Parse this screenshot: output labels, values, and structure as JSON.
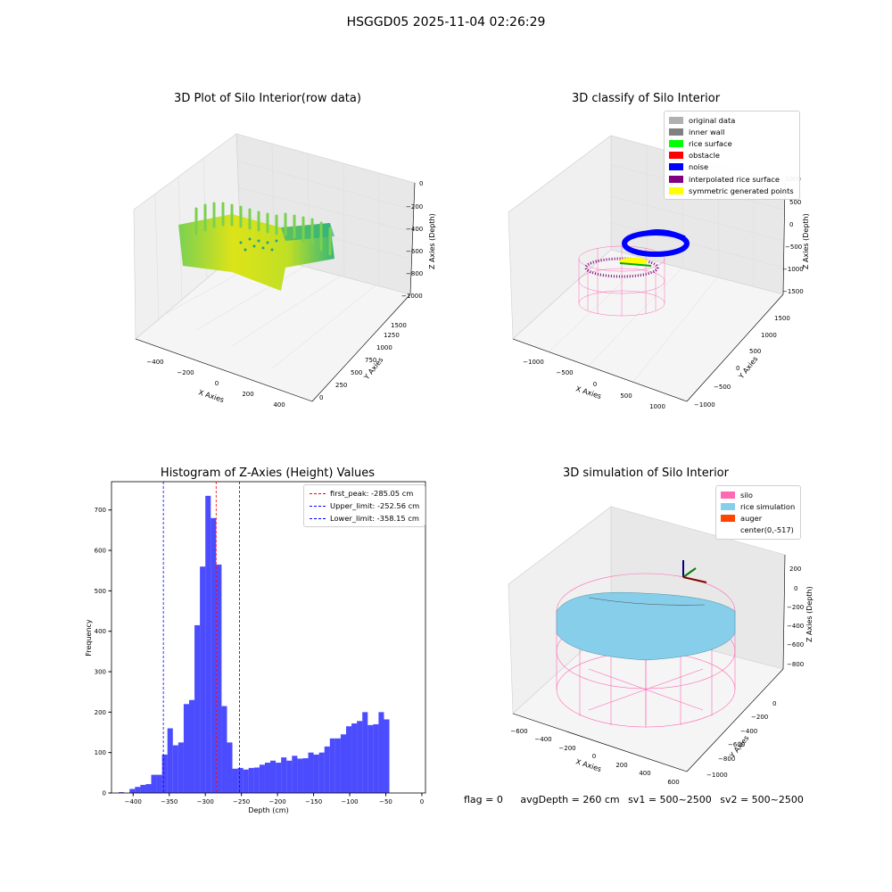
{
  "figure_title": "HSGGD05 2025-11-04 02:26:29",
  "panels": {
    "raw": {
      "title": "3D Plot of Silo Interior(row data)",
      "xlabel": "X Axies",
      "ylabel": "Y Axies",
      "zlabel": "Z Axies (Depth)",
      "xticks": [
        "−400",
        "−200",
        "0",
        "200",
        "400"
      ],
      "yticks": [
        "0",
        "250",
        "500",
        "750",
        "1000",
        "1250",
        "1500"
      ],
      "zticks": [
        "0",
        "−200",
        "−400",
        "−600",
        "−800",
        "−1000"
      ]
    },
    "classify": {
      "title": "3D classify of Silo Interior",
      "xlabel": "X Axies",
      "ylabel": "Y Axies",
      "zlabel": "Z Axies (Depth)",
      "xticks": [
        "−1000",
        "−500",
        "0",
        "500",
        "1000"
      ],
      "yticks": [
        "−1000",
        "−500",
        "0",
        "500",
        "1000",
        "1500"
      ],
      "zticks": [
        "1000",
        "500",
        "0",
        "−500",
        "−1000",
        "−1500"
      ],
      "legend": [
        {
          "label": "original data",
          "color": "#b0b0b0"
        },
        {
          "label": "inner wall",
          "color": "#808080"
        },
        {
          "label": "rice surface",
          "color": "#00ff00"
        },
        {
          "label": "obstacle",
          "color": "#ff0000"
        },
        {
          "label": "noise",
          "color": "#0000ff"
        },
        {
          "label": "interpolated rice surface",
          "color": "#800080"
        },
        {
          "label": "symmetric generated points",
          "color": "#ffff00"
        }
      ]
    },
    "simulation": {
      "title": "3D simulation of Silo Interior",
      "xlabel": "X Axies",
      "ylabel": "Y Axies",
      "zlabel": "Z Axies (Depth)",
      "xticks": [
        "−600",
        "−400",
        "−200",
        "0",
        "200",
        "400",
        "600"
      ],
      "yticks": [
        "0",
        "−200",
        "−400",
        "−600",
        "−800",
        "−1000"
      ],
      "zticks": [
        "200",
        "0",
        "−200",
        "−400",
        "−600",
        "−800"
      ],
      "legend": [
        {
          "label": "silo",
          "color": "#ff69b4"
        },
        {
          "label": "rice simulation",
          "color": "#87ceeb"
        },
        {
          "label": "auger",
          "color": "#ff4500"
        },
        {
          "label": "center(0,-517)",
          "color": "#ffffff"
        }
      ]
    }
  },
  "chart_data": {
    "type": "bar",
    "title": "Histogram of Z-Axies (Height) Values",
    "xlabel": "Depth (cm)",
    "ylabel": "Frequency",
    "xlim": [
      -430,
      5
    ],
    "ylim": [
      0,
      770
    ],
    "xticks": [
      -400,
      -350,
      -300,
      -250,
      -200,
      -150,
      -100,
      -50,
      0
    ],
    "yticks": [
      0,
      100,
      200,
      300,
      400,
      500,
      600,
      700
    ],
    "bin_width": 7.5,
    "bin_start": -420,
    "values": [
      2,
      0,
      10,
      15,
      20,
      22,
      45,
      45,
      95,
      160,
      118,
      125,
      220,
      230,
      415,
      560,
      735,
      680,
      565,
      215,
      125,
      60,
      62,
      58,
      62,
      63,
      70,
      75,
      80,
      75,
      88,
      80,
      92,
      85,
      86,
      100,
      95,
      100,
      115,
      135,
      135,
      145,
      165,
      172,
      178,
      200,
      168,
      170,
      200,
      182
    ],
    "color": "#0000ff",
    "lines": [
      {
        "label": "first_peak: -285.05 cm",
        "x": -285.05,
        "color": "#ff0000"
      },
      {
        "label": "Upper_limit: -252.56 cm",
        "x": -252.56,
        "color": "#0000ff"
      },
      {
        "label": "Lower_limit: -358.15 cm",
        "x": -358.15,
        "color": "#0000ff"
      }
    ]
  },
  "footer": {
    "flag": "flag = 0",
    "avg": "avgDepth = 260 cm",
    "sv1": "sv1 = 500~2500",
    "sv2": "sv2 = 500~2500"
  }
}
